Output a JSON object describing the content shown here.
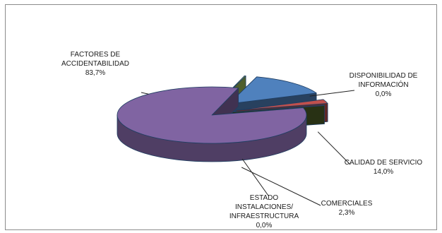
{
  "chart_data": {
    "type": "pie",
    "title": "",
    "style": "3d-exploded",
    "slices": [
      {
        "label": "FACTORES DE ACCIDENTABILIDAD",
        "label_lines": [
          "FACTORES DE",
          "ACCIDENTABILIDAD"
        ],
        "value": 83.7,
        "value_label": "83,7%",
        "color": "#8064a2"
      },
      {
        "label": "DISPONIBILIDAD DE INFORMACIÓN",
        "label_lines": [
          "DISPONIBILIDAD DE",
          "INFORMACIÓN"
        ],
        "value": 0.0,
        "value_label": "0,0%",
        "color": "#9bbb59"
      },
      {
        "label": "CALIDAD DE SERVICIO",
        "label_lines": [
          "CALIDAD DE SERVICIO"
        ],
        "value": 14.0,
        "value_label": "14,0%",
        "color": "#4f81bd"
      },
      {
        "label": "COMERCIALES",
        "label_lines": [
          "COMERCIALES"
        ],
        "value": 2.3,
        "value_label": "2,3%",
        "color": "#c0504d"
      },
      {
        "label": "ESTADO INSTALACIONES/ INFRAESTRUCTURA",
        "label_lines": [
          "ESTADO",
          "INSTALACIONES/",
          "INFRAESTRUCTURA"
        ],
        "value": 0.0,
        "value_label": "0,0%",
        "color": "#4f6228"
      }
    ]
  }
}
